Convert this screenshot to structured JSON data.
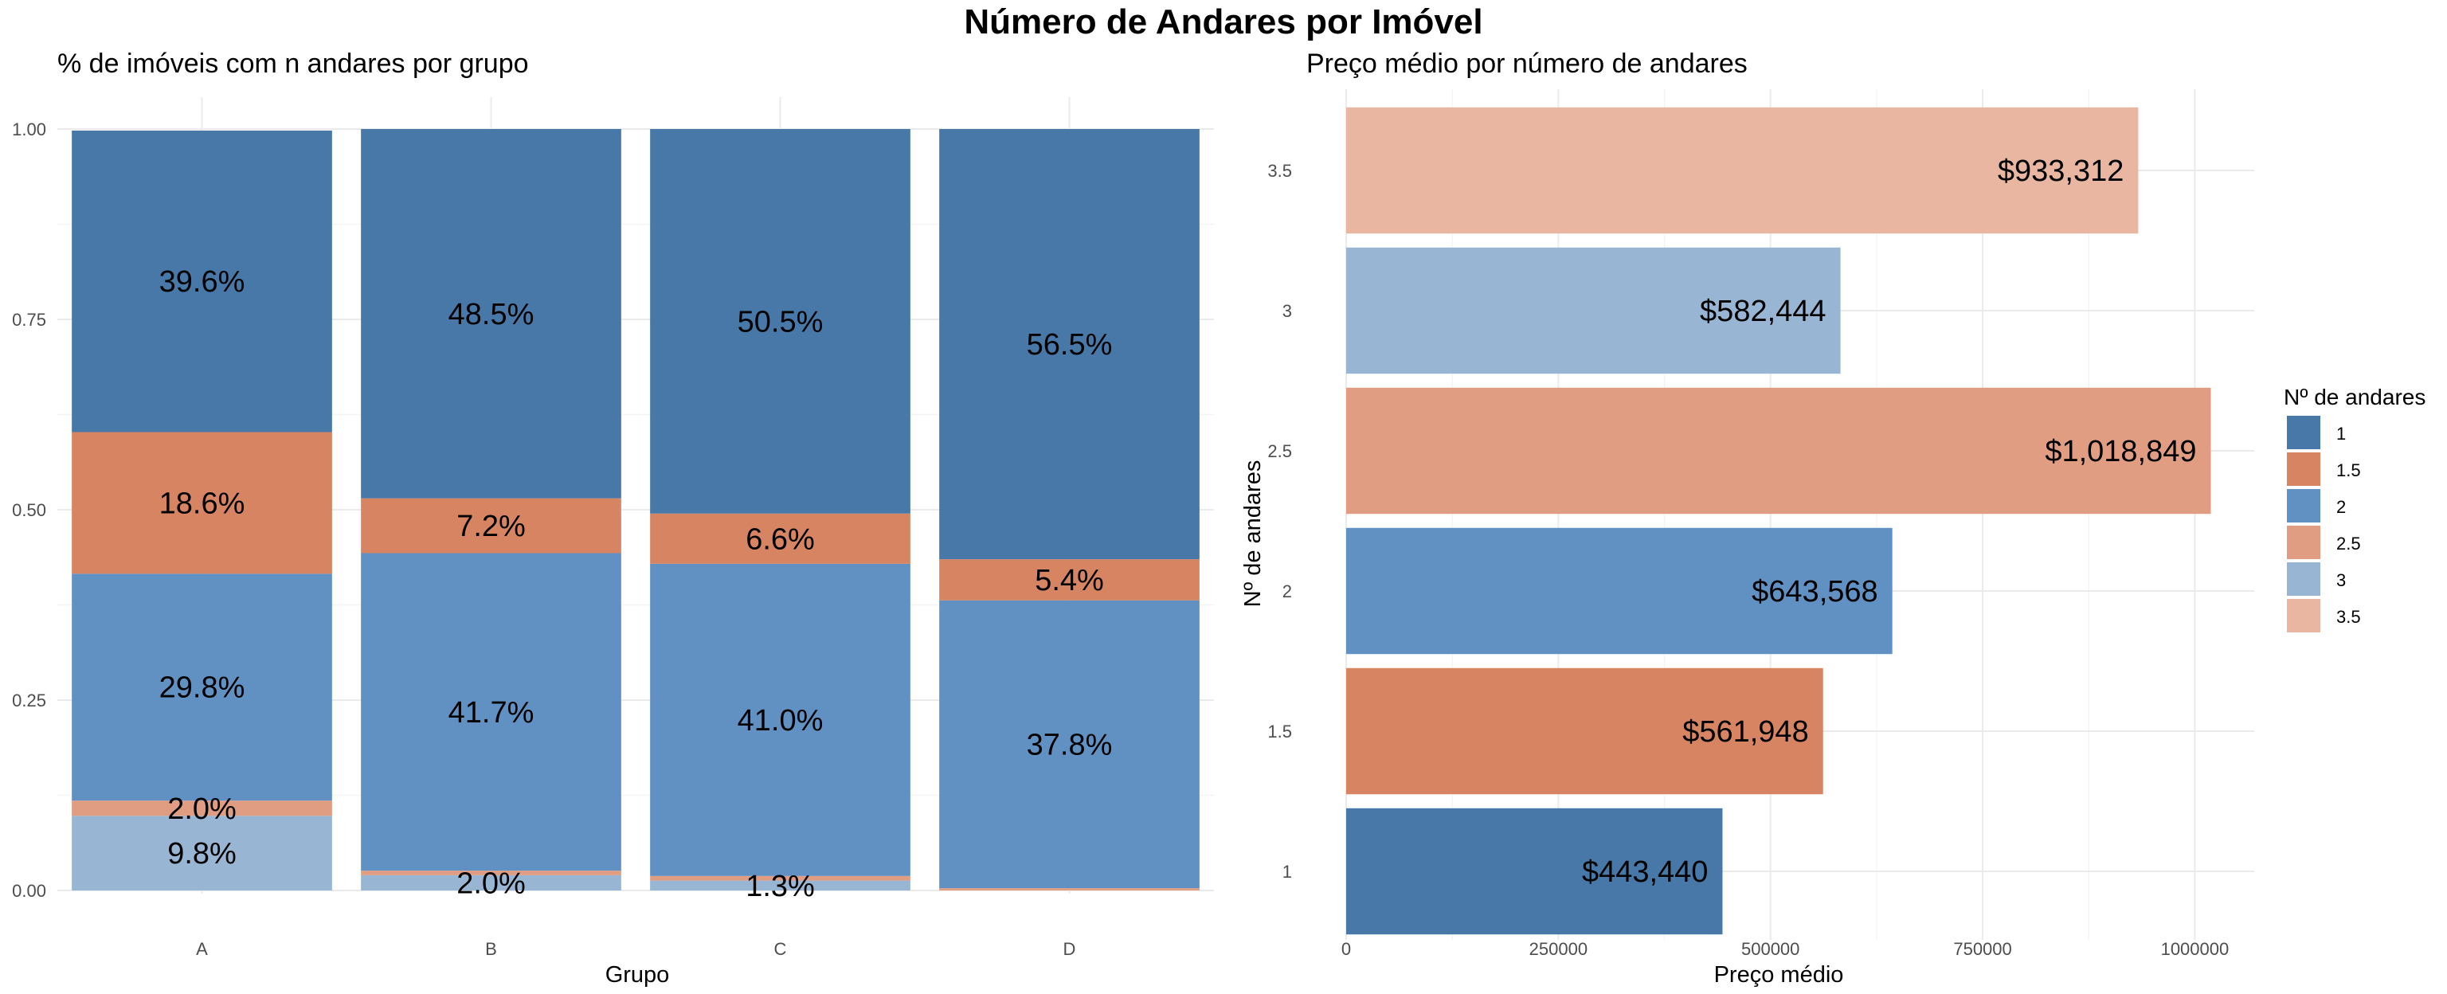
{
  "title": "Número de Andares por Imóvel",
  "colors": {
    "1": "#4878a8",
    "1.5": "#d68462",
    "2": "#6191c3",
    "2.5": "#e09d82",
    "3": "#98b6d4",
    "3.5": "#e9b6a2"
  },
  "chart_data": [
    {
      "type": "bar",
      "stacked": true,
      "title": "% de imóveis com n andares por grupo",
      "xlabel": "Grupo",
      "ylabel": "",
      "ylim": [
        0,
        1
      ],
      "yticks": [
        "0.00",
        "0.25",
        "0.50",
        "0.75",
        "1.00"
      ],
      "categories": [
        "A",
        "B",
        "C",
        "D"
      ],
      "series": [
        {
          "name": "3.5",
          "values": [
            0.0,
            0.0,
            0.0,
            0.0
          ],
          "labels": [
            "",
            "",
            "",
            ""
          ]
        },
        {
          "name": "3",
          "values": [
            0.098,
            0.02,
            0.013,
            0.0
          ],
          "labels": [
            "9.8%",
            "2.0%",
            "1.3%",
            ""
          ]
        },
        {
          "name": "2.5",
          "values": [
            0.02,
            0.006,
            0.006,
            0.003
          ],
          "labels": [
            "2.0%",
            "",
            "",
            ""
          ]
        },
        {
          "name": "2",
          "values": [
            0.298,
            0.417,
            0.41,
            0.378
          ],
          "labels": [
            "29.8%",
            "41.7%",
            "41.0%",
            "37.8%"
          ]
        },
        {
          "name": "1.5",
          "values": [
            0.186,
            0.072,
            0.066,
            0.054
          ],
          "labels": [
            "18.6%",
            "7.2%",
            "6.6%",
            "5.4%"
          ]
        },
        {
          "name": "1",
          "values": [
            0.396,
            0.485,
            0.505,
            0.565
          ],
          "labels": [
            "39.6%",
            "48.5%",
            "50.5%",
            "56.5%"
          ]
        }
      ]
    },
    {
      "type": "bar",
      "orientation": "horizontal",
      "title": "Preço médio por número de andares",
      "xlabel": "Preço médio",
      "ylabel": "Nº de andares",
      "xlim": [
        0,
        1070000
      ],
      "xticks": [
        "0",
        "250000",
        "500000",
        "750000",
        "1000000"
      ],
      "categories": [
        "1",
        "1.5",
        "2",
        "2.5",
        "3",
        "3.5"
      ],
      "values": [
        443440,
        561948,
        643568,
        1018849,
        582444,
        933312
      ],
      "labels": [
        "$443,440",
        "$561,948",
        "$643,568",
        "$1,018,849",
        "$582,444",
        "$933,312"
      ]
    }
  ],
  "legend": {
    "title": "Nº de andares",
    "position": "right",
    "items": [
      "1",
      "1.5",
      "2",
      "2.5",
      "3",
      "3.5"
    ]
  }
}
